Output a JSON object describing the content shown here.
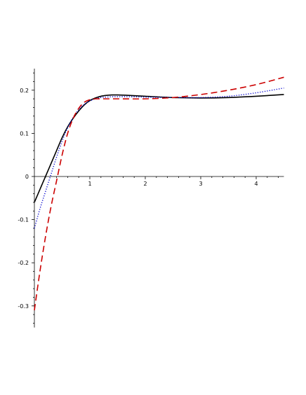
{
  "chart_data": {
    "type": "line",
    "title": "",
    "xlabel": "",
    "ylabel": "",
    "xlim": [
      0,
      4.5
    ],
    "ylim": [
      -0.35,
      0.25
    ],
    "grid": false,
    "legend": "none",
    "x_ticks": [
      1,
      2,
      3,
      4
    ],
    "x_tick_labels": [
      "1",
      "2",
      "3",
      "4"
    ],
    "y_ticks": [
      -0.3,
      -0.2,
      -0.1,
      0,
      0.1,
      0.2
    ],
    "y_tick_labels": [
      "-0.3",
      "-0.2",
      "-0.1",
      "0",
      "0.1",
      "0.2"
    ],
    "series": [
      {
        "style": "solid",
        "color": "#000000",
        "x": [
          0,
          0.1,
          0.2,
          0.3,
          0.4,
          0.5,
          0.6,
          0.7,
          0.8,
          0.9,
          1.0,
          1.1,
          1.2,
          1.3,
          1.4,
          1.5,
          1.7,
          2.0,
          2.5,
          3.0,
          3.5,
          4.0,
          4.5
        ],
        "y": [
          -0.06,
          -0.03,
          0.0,
          0.03,
          0.06,
          0.09,
          0.115,
          0.135,
          0.152,
          0.166,
          0.176,
          0.182,
          0.186,
          0.188,
          0.189,
          0.189,
          0.188,
          0.186,
          0.183,
          0.182,
          0.183,
          0.186,
          0.19
        ]
      },
      {
        "style": "dotted",
        "color": "#0000cc",
        "x": [
          0,
          0.1,
          0.2,
          0.3,
          0.4,
          0.5,
          0.6,
          0.7,
          0.8,
          0.9,
          1.0,
          1.1,
          1.2,
          1.3,
          1.4,
          1.5,
          1.7,
          2.0,
          2.5,
          3.0,
          3.5,
          4.0,
          4.5
        ],
        "y": [
          -0.12,
          -0.075,
          -0.035,
          0.005,
          0.045,
          0.082,
          0.113,
          0.137,
          0.155,
          0.167,
          0.175,
          0.18,
          0.183,
          0.184,
          0.185,
          0.185,
          0.185,
          0.184,
          0.183,
          0.183,
          0.186,
          0.194,
          0.205
        ]
      },
      {
        "style": "dashed",
        "color": "#cc0000",
        "x": [
          0,
          0.1,
          0.2,
          0.3,
          0.4,
          0.5,
          0.6,
          0.7,
          0.8,
          0.9,
          1.0,
          1.1,
          1.2,
          1.5,
          2.0,
          2.5,
          3.0,
          3.5,
          4.0,
          4.5
        ],
        "y": [
          -0.31,
          -0.22,
          -0.14,
          -0.07,
          -0.01,
          0.05,
          0.1,
          0.135,
          0.158,
          0.172,
          0.178,
          0.18,
          0.18,
          0.18,
          0.18,
          0.183,
          0.19,
          0.2,
          0.213,
          0.23
        ]
      }
    ]
  }
}
